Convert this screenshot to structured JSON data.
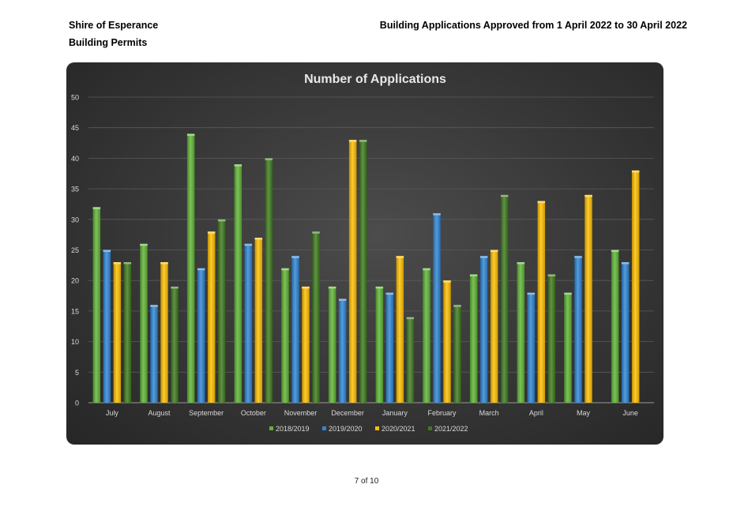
{
  "header": {
    "organisation": "Shire of Esperance",
    "department": "Building Permits",
    "report_title": "Building Applications  Approved from 1 April 2022 to 30 April 2022"
  },
  "footer": {
    "page": "7 of 10"
  },
  "colors": {
    "s2018": "#5fb535",
    "s2019": "#2f86d6",
    "s2020": "#ffc000",
    "s2021": "#3e7a1d"
  },
  "chart_data": {
    "type": "bar",
    "title": "Number of Applications",
    "xlabel": "",
    "ylabel": "",
    "ylim": [
      0,
      50
    ],
    "yticks": [
      0,
      5,
      10,
      15,
      20,
      25,
      30,
      35,
      40,
      45,
      50
    ],
    "grid": true,
    "legend_position": "bottom",
    "categories": [
      "July",
      "August",
      "September",
      "October",
      "November",
      "December",
      "January",
      "February",
      "March",
      "April",
      "May",
      "June"
    ],
    "series": [
      {
        "name": "2018/2019",
        "color": "#5fb535",
        "values": [
          32,
          26,
          44,
          39,
          22,
          19,
          19,
          22,
          21,
          23,
          18,
          25
        ]
      },
      {
        "name": "2019/2020",
        "color": "#2f86d6",
        "values": [
          25,
          16,
          22,
          26,
          24,
          17,
          18,
          31,
          24,
          18,
          24,
          23
        ]
      },
      {
        "name": "2020/2021",
        "color": "#ffc000",
        "values": [
          23,
          23,
          28,
          27,
          19,
          43,
          24,
          20,
          25,
          33,
          34,
          38
        ]
      },
      {
        "name": "2021/2022",
        "color": "#3e7a1d",
        "values": [
          23,
          19,
          30,
          40,
          28,
          43,
          14,
          16,
          34,
          21,
          null,
          null
        ]
      }
    ]
  }
}
